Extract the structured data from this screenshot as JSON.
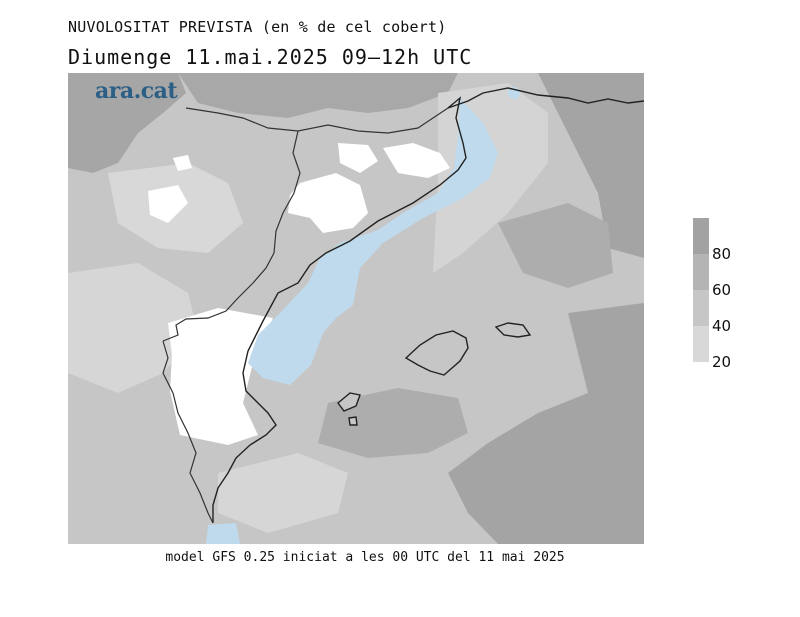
{
  "header": {
    "title": "NUVOLOSITAT PREVISTA (en % de cel cobert)",
    "subtitle": "Diumenge  11.mai.2025 09‒12h UTC"
  },
  "logo": "ara.cat",
  "footer": "model GFS 0.25 iniciat a les 00 UTC del 11 mai 2025",
  "legend": {
    "labels": [
      "80",
      "60",
      "40",
      "20"
    ],
    "colors": [
      "#a2a2a2",
      "#b4b4b4",
      "#c6c6c6",
      "#d8d8d8",
      "#e6e6e6"
    ]
  },
  "colors": {
    "sea_clear": "#bfdaec",
    "coast": "#222222",
    "border": "#3a3a3a"
  }
}
